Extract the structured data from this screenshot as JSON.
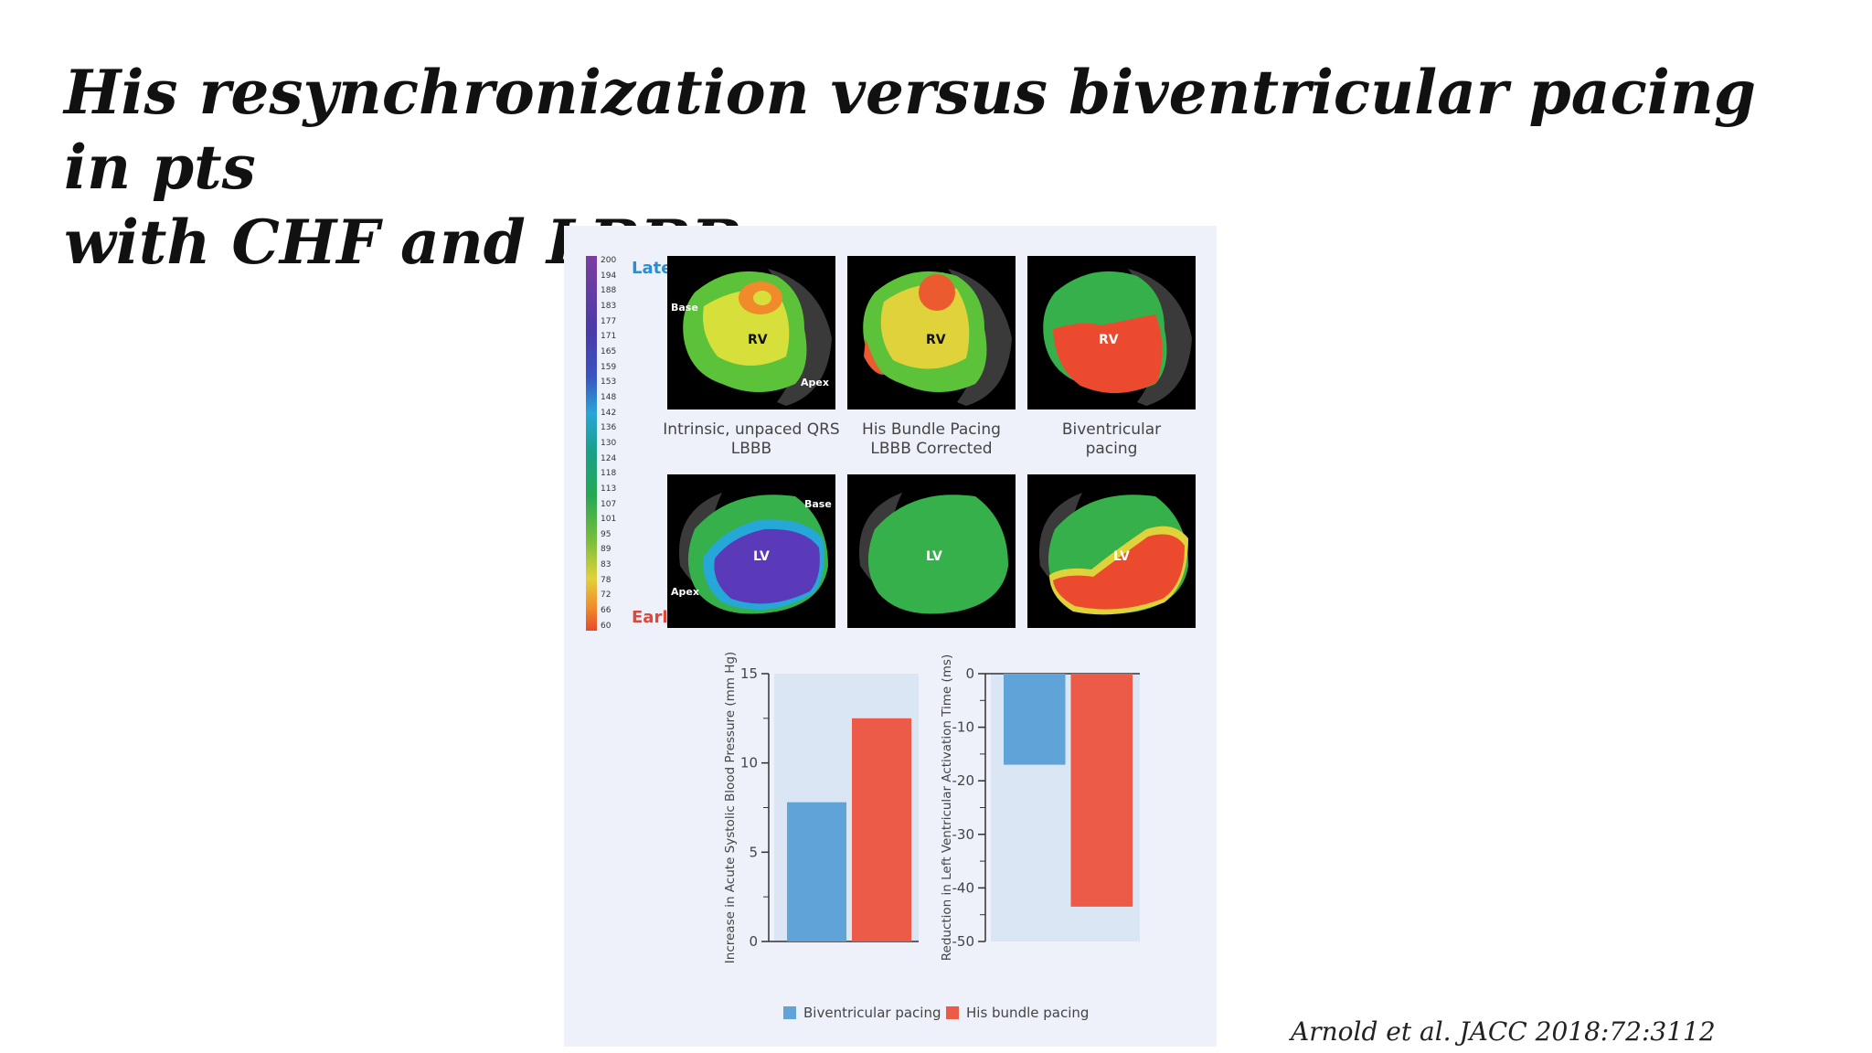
{
  "slide": {
    "title_line1": "His resynchronization versus biventricular pacing in pts",
    "title_line2": "with CHF and LBBB",
    "citation": "Arnold et al. JACC 2018:72:3112"
  },
  "color_scale": {
    "labels": [
      "200",
      "194",
      "188",
      "183",
      "177",
      "171",
      "165",
      "159",
      "153",
      "148",
      "142",
      "136",
      "130",
      "124",
      "118",
      "113",
      "107",
      "101",
      "95",
      "89",
      "83",
      "78",
      "72",
      "66",
      "60"
    ],
    "late_label": "Late",
    "early_label": "Early"
  },
  "maps": {
    "rv_label": "RV",
    "lv_label": "LV",
    "base_label": "Base",
    "apex_label": "Apex",
    "captions": [
      {
        "line1": "Intrinsic, unpaced QRS",
        "line2": "LBBB"
      },
      {
        "line1": "His Bundle Pacing",
        "line2": "LBBB Corrected"
      },
      {
        "line1": "Biventricular",
        "line2": "pacing"
      }
    ]
  },
  "colors": {
    "biventricular": "#5fa3d8",
    "his": "#ec5a48",
    "plot_bg": "#dbe6f5"
  },
  "chart_data": [
    {
      "type": "bar",
      "categories": [
        "Biventricular pacing",
        "His bundle pacing"
      ],
      "values": [
        7.8,
        12.5
      ],
      "ylabel": "Increase in Acute Systolic Blood Pressure (mm Hg)",
      "ylim": [
        0,
        15
      ],
      "yticks": [
        0,
        5,
        10,
        15
      ]
    },
    {
      "type": "bar",
      "categories": [
        "Biventricular pacing",
        "His bundle pacing"
      ],
      "values": [
        -17,
        -43.5
      ],
      "ylabel": "Reduction in Left Ventricular Activation Time (ms)",
      "ylim": [
        -50,
        0
      ],
      "yticks": [
        0,
        -10,
        -20,
        -30,
        -40,
        -50
      ]
    }
  ],
  "legend": {
    "biv_label": "Biventricular pacing",
    "his_label": "His bundle pacing"
  }
}
